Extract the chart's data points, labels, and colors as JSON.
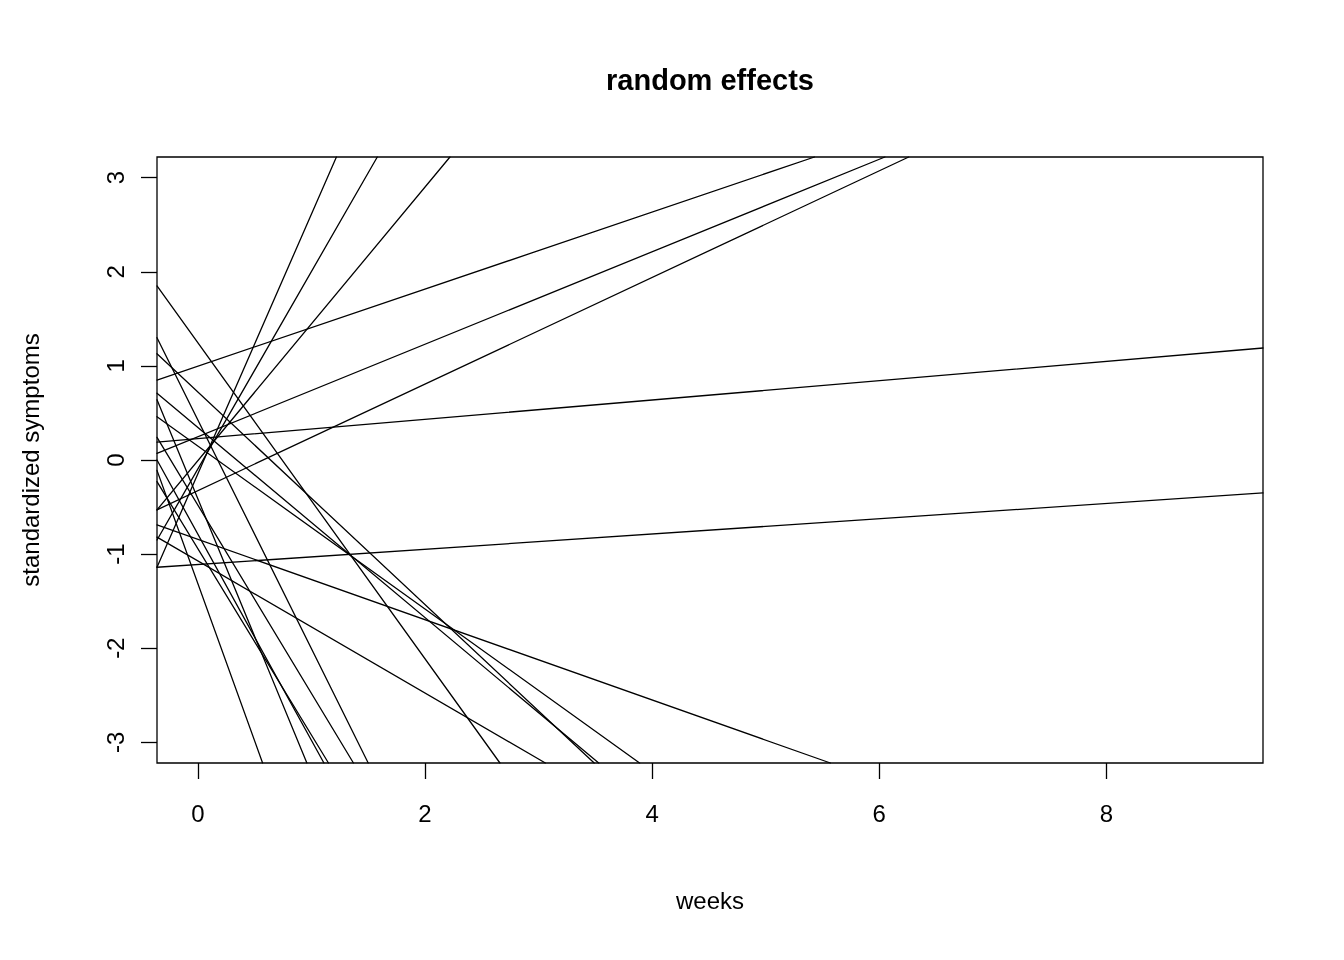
{
  "chart_data": {
    "type": "line",
    "title": "random effects",
    "xlabel": "weeks",
    "ylabel": "standardized symptoms",
    "xlim": [
      -0.36,
      9.38
    ],
    "ylim": [
      -3.22,
      3.22
    ],
    "xticks": [
      0,
      2,
      4,
      6,
      8
    ],
    "yticks": [
      -3,
      -2,
      -1,
      0,
      1,
      2,
      3
    ],
    "grid": false,
    "marker": "none",
    "line_style": "solid",
    "series": [
      {
        "color": "#000000",
        "x": [
          -0.36,
          5.43
        ],
        "values": [
          0.85,
          3.22
        ]
      },
      {
        "color": "#000000",
        "x": [
          -0.36,
          6.05
        ],
        "values": [
          0.07,
          3.22
        ]
      },
      {
        "color": "#000000",
        "x": [
          -0.36,
          6.26
        ],
        "values": [
          -0.53,
          3.22
        ]
      },
      {
        "color": "#000000",
        "x": [
          -0.36,
          9.38
        ],
        "values": [
          0.19,
          1.19
        ]
      },
      {
        "color": "#000000",
        "x": [
          -0.36,
          9.38
        ],
        "values": [
          -1.14,
          -0.35
        ]
      },
      {
        "color": "#000000",
        "x": [
          -0.36,
          1.22
        ],
        "values": [
          -1.14,
          3.22
        ]
      },
      {
        "color": "#000000",
        "x": [
          -0.36,
          1.58
        ],
        "values": [
          -0.85,
          3.22
        ]
      },
      {
        "color": "#000000",
        "x": [
          -0.36,
          2.22
        ],
        "values": [
          -0.53,
          3.22
        ]
      },
      {
        "color": "#000000",
        "x": [
          -0.36,
          5.57
        ],
        "values": [
          -0.69,
          -3.22
        ]
      },
      {
        "color": "#000000",
        "x": [
          -0.36,
          3.89
        ],
        "values": [
          0.46,
          -3.22
        ]
      },
      {
        "color": "#000000",
        "x": [
          -0.36,
          3.53
        ],
        "values": [
          0.71,
          -3.22
        ]
      },
      {
        "color": "#000000",
        "x": [
          -0.36,
          3.49
        ],
        "values": [
          1.13,
          -3.22
        ]
      },
      {
        "color": "#000000",
        "x": [
          -0.36,
          3.06
        ],
        "values": [
          -0.82,
          -3.22
        ]
      },
      {
        "color": "#000000",
        "x": [
          -0.36,
          2.66
        ],
        "values": [
          1.85,
          -3.22
        ]
      },
      {
        "color": "#000000",
        "x": [
          -0.36,
          1.5
        ],
        "values": [
          1.3,
          -3.22
        ]
      },
      {
        "color": "#000000",
        "x": [
          -0.36,
          1.37
        ],
        "values": [
          0.24,
          -3.22
        ]
      },
      {
        "color": "#000000",
        "x": [
          -0.36,
          1.15
        ],
        "values": [
          -0.23,
          -3.22
        ]
      },
      {
        "color": "#000000",
        "x": [
          -0.36,
          1.11
        ],
        "values": [
          0.0,
          -3.22
        ]
      },
      {
        "color": "#000000",
        "x": [
          -0.36,
          0.96
        ],
        "values": [
          0.64,
          -3.22
        ]
      },
      {
        "color": "#000000",
        "x": [
          -0.36,
          0.57
        ],
        "values": [
          -0.11,
          -3.22
        ]
      }
    ]
  }
}
